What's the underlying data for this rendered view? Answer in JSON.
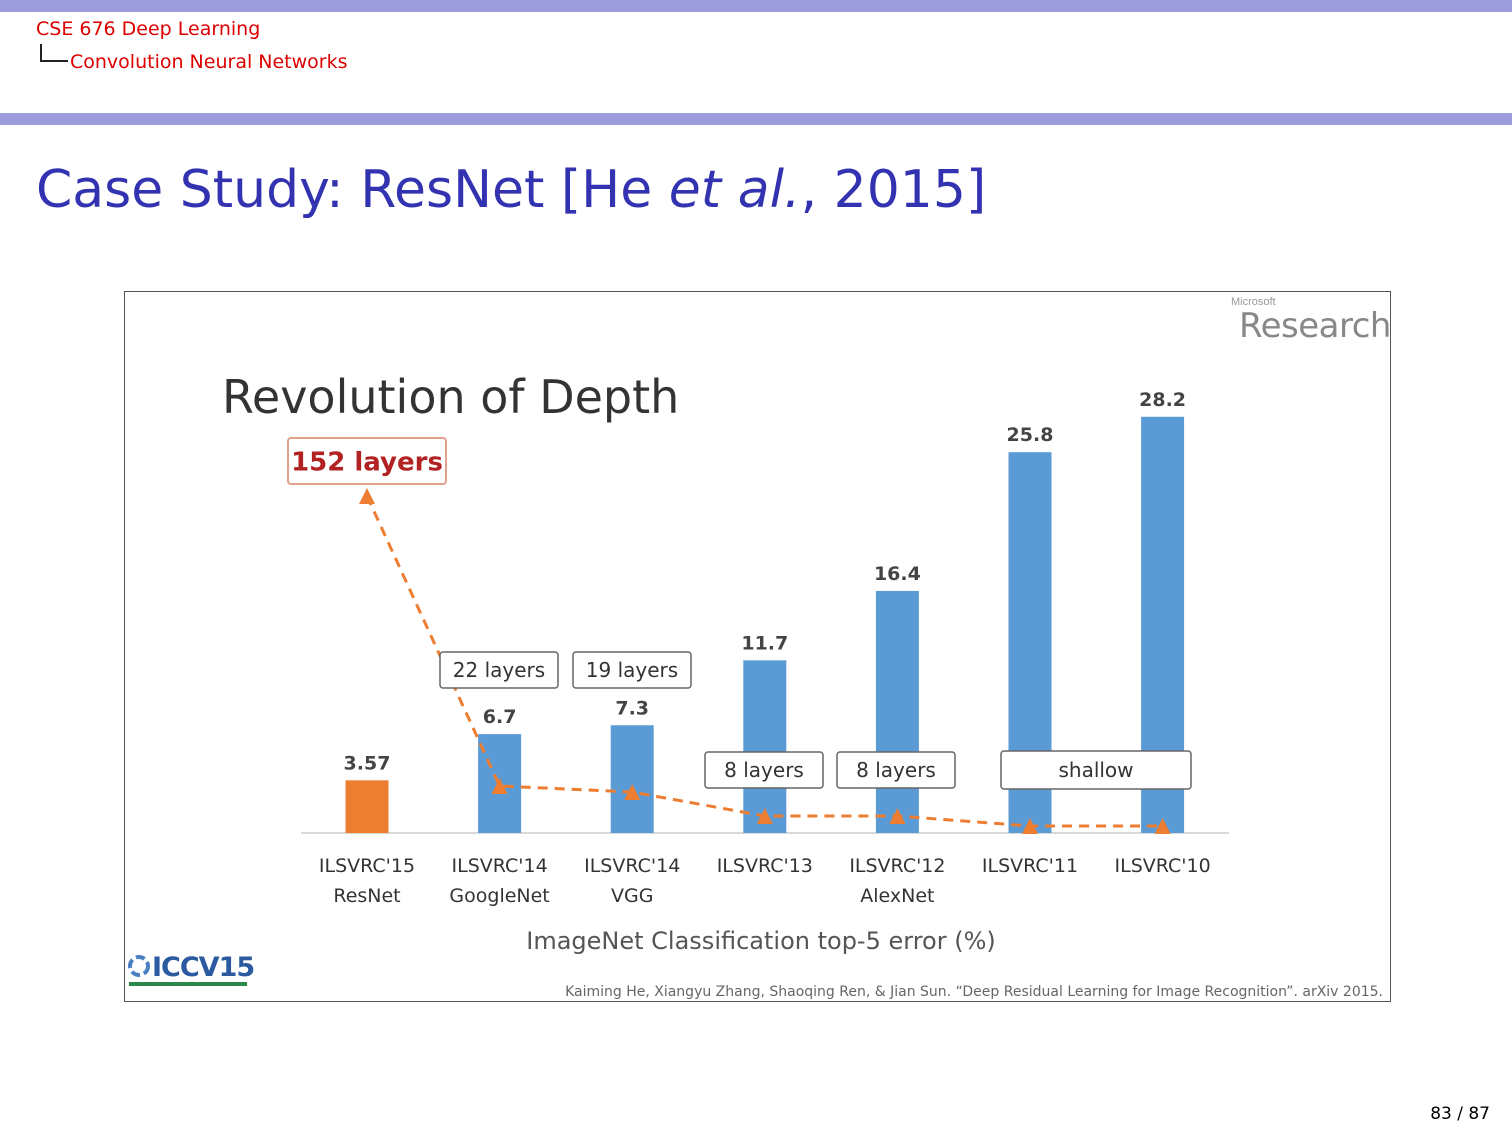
{
  "header": {
    "course": "CSE 676 Deep Learning",
    "section": "Convolution Neural Networks"
  },
  "slide": {
    "title_main": "Case Study: ResNet [He ",
    "title_italic": "et al.",
    "title_end": ", 2015]",
    "page": "83 / 87"
  },
  "figure": {
    "ms_small": "Microsoft",
    "ms_big": "Research",
    "conference_logo": "ICCV15",
    "citation": "Kaiming He, Xiangyu Zhang, Shaoqing Ren, & Jian Sun. “Deep Residual Learning for Image Recognition”. arXiv 2015."
  },
  "chart_data": {
    "type": "bar",
    "title": "Revolution of Depth",
    "xlabel": "ImageNet Classification top-5 error (%)",
    "ylabel": "",
    "ylim": [
      0,
      30
    ],
    "grid": false,
    "categories": [
      [
        "ILSVRC'15",
        "ResNet"
      ],
      [
        "ILSVRC'14",
        "GoogleNet"
      ],
      [
        "ILSVRC'14",
        "VGG"
      ],
      [
        "ILSVRC'13",
        ""
      ],
      [
        "ILSVRC'12",
        "AlexNet"
      ],
      [
        "ILSVRC'11",
        ""
      ],
      [
        "ILSVRC'10",
        ""
      ]
    ],
    "values": [
      3.57,
      6.7,
      7.3,
      11.7,
      16.4,
      25.8,
      28.2
    ],
    "value_labels": [
      "3.57",
      "6.7",
      "7.3",
      "11.7",
      "16.4",
      "25.8",
      "28.2"
    ],
    "bar_colors": [
      "#ed7d31",
      "#5b9bd5",
      "#5b9bd5",
      "#5b9bd5",
      "#5b9bd5",
      "#5b9bd5",
      "#5b9bd5"
    ],
    "depth_labels": [
      {
        "text": "152 layers",
        "highlight": true
      },
      {
        "text": "22 layers",
        "highlight": false
      },
      {
        "text": "19 layers",
        "highlight": false
      },
      {
        "text": "8 layers",
        "highlight": false
      },
      {
        "text": "8 layers",
        "highlight": false
      },
      {
        "text": "shallow",
        "highlight": false
      }
    ],
    "depth_trend_color": "#ed7d31"
  }
}
